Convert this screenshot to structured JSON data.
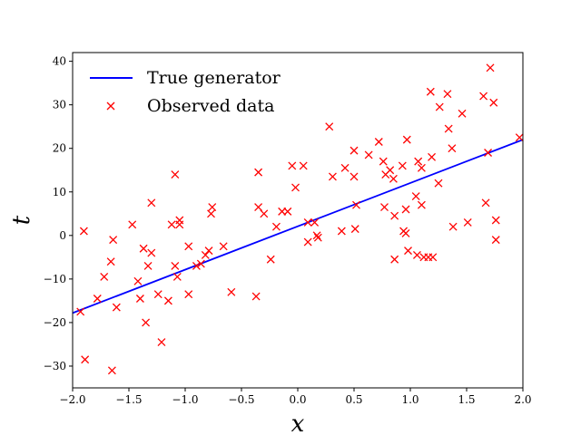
{
  "chart_data": {
    "type": "scatter",
    "title": "",
    "xlabel": "x",
    "ylabel": "t",
    "xlim": [
      -2.0,
      2.0
    ],
    "ylim": [
      -35,
      42
    ],
    "xticks": [
      -2.0,
      -1.5,
      -1.0,
      -0.5,
      0.0,
      0.5,
      1.0,
      1.5,
      2.0
    ],
    "xtick_labels": [
      "−2.0",
      "−1.5",
      "−1.0",
      "−0.5",
      "0.0",
      "0.5",
      "1.0",
      "1.5",
      "2.0"
    ],
    "yticks": [
      -30,
      -20,
      -10,
      0,
      10,
      20,
      30,
      40
    ],
    "ytick_labels": [
      "−30",
      "−20",
      "−10",
      "0",
      "10",
      "20",
      "30",
      "40"
    ],
    "grid": false,
    "legend_position": "top-left",
    "series": [
      {
        "name": "True generator",
        "kind": "line",
        "color": "#0000ff",
        "x": [
          -2.0,
          2.0
        ],
        "y": [
          -17.8,
          22.0
        ]
      },
      {
        "name": "Observed data",
        "kind": "scatter",
        "marker": "x",
        "color": "#ff0000",
        "points": [
          [
            -1.93,
            -17.5
          ],
          [
            -1.9,
            1.0
          ],
          [
            -1.89,
            -28.5
          ],
          [
            -1.78,
            -14.5
          ],
          [
            -1.72,
            -9.5
          ],
          [
            -1.66,
            -6.0
          ],
          [
            -1.65,
            -31.0
          ],
          [
            -1.64,
            -1.0
          ],
          [
            -1.61,
            -16.5
          ],
          [
            -1.47,
            2.5
          ],
          [
            -1.42,
            -10.5
          ],
          [
            -1.4,
            -14.5
          ],
          [
            -1.37,
            -3.0
          ],
          [
            -1.35,
            -20.0
          ],
          [
            -1.33,
            -7.0
          ],
          [
            -1.3,
            7.5
          ],
          [
            -1.3,
            -4.0
          ],
          [
            -1.24,
            -13.5
          ],
          [
            -1.21,
            -24.5
          ],
          [
            -1.15,
            -15.0
          ],
          [
            -1.12,
            2.5
          ],
          [
            -1.09,
            14.0
          ],
          [
            -1.09,
            -7.0
          ],
          [
            -1.07,
            -9.5
          ],
          [
            -1.05,
            3.5
          ],
          [
            -1.05,
            2.5
          ],
          [
            -0.97,
            -2.5
          ],
          [
            -0.97,
            -13.5
          ],
          [
            -0.9,
            -7.0
          ],
          [
            -0.86,
            -6.5
          ],
          [
            -0.82,
            -4.5
          ],
          [
            -0.79,
            -3.5
          ],
          [
            -0.76,
            6.5
          ],
          [
            -0.77,
            5.0
          ],
          [
            -0.66,
            -2.5
          ],
          [
            -0.59,
            -13.0
          ],
          [
            -0.37,
            -14.0
          ],
          [
            -0.35,
            6.5
          ],
          [
            -0.35,
            14.5
          ],
          [
            -0.3,
            5.0
          ],
          [
            -0.24,
            -5.5
          ],
          [
            -0.19,
            2.0
          ],
          [
            -0.14,
            5.5
          ],
          [
            -0.09,
            5.5
          ],
          [
            -0.05,
            16.0
          ],
          [
            -0.02,
            11.0
          ],
          [
            0.05,
            16.0
          ],
          [
            0.09,
            3.0
          ],
          [
            0.09,
            -1.5
          ],
          [
            0.15,
            3.0
          ],
          [
            0.17,
            0.0
          ],
          [
            0.18,
            -0.5
          ],
          [
            0.28,
            25.0
          ],
          [
            0.31,
            13.5
          ],
          [
            0.39,
            1.0
          ],
          [
            0.42,
            15.5
          ],
          [
            0.5,
            19.5
          ],
          [
            0.5,
            13.5
          ],
          [
            0.51,
            1.5
          ],
          [
            0.52,
            7.0
          ],
          [
            0.63,
            18.5
          ],
          [
            0.72,
            21.5
          ],
          [
            0.76,
            17.0
          ],
          [
            0.77,
            6.5
          ],
          [
            0.78,
            14.0
          ],
          [
            0.82,
            15.0
          ],
          [
            0.85,
            13.0
          ],
          [
            0.86,
            4.5
          ],
          [
            0.86,
            -5.5
          ],
          [
            0.93,
            16.0
          ],
          [
            0.94,
            1.0
          ],
          [
            0.96,
            6.0
          ],
          [
            0.96,
            0.5
          ],
          [
            0.97,
            22.0
          ],
          [
            0.98,
            -3.5
          ],
          [
            1.05,
            9.0
          ],
          [
            1.06,
            -4.5
          ],
          [
            1.07,
            17.0
          ],
          [
            1.1,
            15.5
          ],
          [
            1.1,
            7.0
          ],
          [
            1.12,
            -5.0
          ],
          [
            1.16,
            -5.0
          ],
          [
            1.18,
            33.0
          ],
          [
            1.19,
            18.0
          ],
          [
            1.2,
            -5.0
          ],
          [
            1.25,
            12.0
          ],
          [
            1.26,
            29.5
          ],
          [
            1.33,
            32.5
          ],
          [
            1.34,
            24.5
          ],
          [
            1.37,
            20.0
          ],
          [
            1.38,
            2.0
          ],
          [
            1.46,
            28.0
          ],
          [
            1.51,
            3.0
          ],
          [
            1.65,
            32.0
          ],
          [
            1.67,
            7.5
          ],
          [
            1.69,
            19.0
          ],
          [
            1.71,
            38.5
          ],
          [
            1.74,
            30.5
          ],
          [
            1.76,
            3.5
          ],
          [
            1.76,
            -1.0
          ],
          [
            1.97,
            22.5
          ]
        ]
      }
    ]
  }
}
